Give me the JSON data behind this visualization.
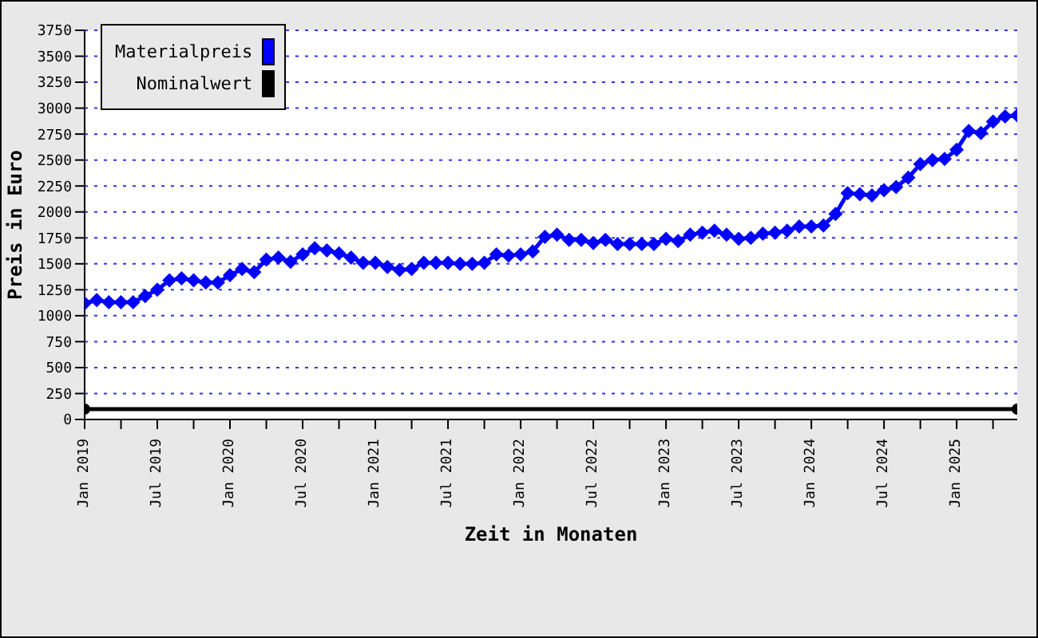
{
  "chart_data": {
    "type": "line",
    "xlabel": "Zeit in Monaten",
    "ylabel": "Preis in Euro",
    "x": [
      "2019-01",
      "2019-02",
      "2019-03",
      "2019-04",
      "2019-05",
      "2019-06",
      "2019-07",
      "2019-08",
      "2019-09",
      "2019-10",
      "2019-11",
      "2019-12",
      "2020-01",
      "2020-02",
      "2020-03",
      "2020-04",
      "2020-05",
      "2020-06",
      "2020-07",
      "2020-08",
      "2020-09",
      "2020-10",
      "2020-11",
      "2020-12",
      "2021-01",
      "2021-02",
      "2021-03",
      "2021-04",
      "2021-05",
      "2021-06",
      "2021-07",
      "2021-08",
      "2021-09",
      "2021-10",
      "2021-11",
      "2021-12",
      "2022-01",
      "2022-02",
      "2022-03",
      "2022-04",
      "2022-05",
      "2022-06",
      "2022-07",
      "2022-08",
      "2022-09",
      "2022-10",
      "2022-11",
      "2022-12",
      "2023-01",
      "2023-02",
      "2023-03",
      "2023-04",
      "2023-05",
      "2023-06",
      "2023-07",
      "2023-08",
      "2023-09",
      "2023-10",
      "2023-11",
      "2023-12",
      "2024-01",
      "2024-02",
      "2024-03",
      "2024-04",
      "2024-05",
      "2024-06",
      "2024-07",
      "2024-08",
      "2024-09",
      "2024-10",
      "2024-11",
      "2024-12",
      "2025-01",
      "2025-02",
      "2025-03",
      "2025-04",
      "2025-05",
      "2025-06"
    ],
    "series": [
      {
        "name": "Materialpreis",
        "color": "#0000ff",
        "marker": "diamond",
        "values": [
          1120,
          1150,
          1130,
          1130,
          1130,
          1190,
          1250,
          1340,
          1360,
          1340,
          1320,
          1320,
          1390,
          1450,
          1420,
          1540,
          1560,
          1520,
          1590,
          1650,
          1630,
          1600,
          1560,
          1510,
          1510,
          1470,
          1440,
          1450,
          1510,
          1510,
          1510,
          1500,
          1500,
          1510,
          1590,
          1580,
          1590,
          1620,
          1760,
          1780,
          1730,
          1730,
          1700,
          1730,
          1690,
          1690,
          1690,
          1690,
          1740,
          1720,
          1780,
          1800,
          1820,
          1780,
          1740,
          1750,
          1790,
          1800,
          1820,
          1860,
          1860,
          1870,
          1980,
          2180,
          2170,
          2160,
          2210,
          2240,
          2330,
          2460,
          2500,
          2510,
          2600,
          2780,
          2760,
          2870,
          2920,
          2930
        ]
      },
      {
        "name": "Nominalwert",
        "color": "#000000",
        "marker": "circle",
        "x": [
          "2019-01",
          "2025-06"
        ],
        "values": [
          100,
          100
        ]
      }
    ],
    "xlim": [
      "2019-01",
      "2025-06"
    ],
    "xticks": [
      {
        "value": "2019-01",
        "label": "Jan 2019"
      },
      {
        "value": "2019-04",
        "label": null
      },
      {
        "value": "2019-07",
        "label": "Jul 2019"
      },
      {
        "value": "2019-10",
        "label": null
      },
      {
        "value": "2020-01",
        "label": "Jan 2020"
      },
      {
        "value": "2020-04",
        "label": null
      },
      {
        "value": "2020-07",
        "label": "Jul 2020"
      },
      {
        "value": "2020-10",
        "label": null
      },
      {
        "value": "2021-01",
        "label": "Jan 2021"
      },
      {
        "value": "2021-04",
        "label": null
      },
      {
        "value": "2021-07",
        "label": "Jul 2021"
      },
      {
        "value": "2021-10",
        "label": null
      },
      {
        "value": "2022-01",
        "label": "Jan 2022"
      },
      {
        "value": "2022-04",
        "label": null
      },
      {
        "value": "2022-07",
        "label": "Jul 2022"
      },
      {
        "value": "2022-10",
        "label": null
      },
      {
        "value": "2023-01",
        "label": "Jan 2023"
      },
      {
        "value": "2023-04",
        "label": null
      },
      {
        "value": "2023-07",
        "label": "Jul 2023"
      },
      {
        "value": "2023-10",
        "label": null
      },
      {
        "value": "2024-01",
        "label": "Jan 2024"
      },
      {
        "value": "2024-04",
        "label": null
      },
      {
        "value": "2024-07",
        "label": "Jul 2024"
      },
      {
        "value": "2024-10",
        "label": null
      },
      {
        "value": "2025-01",
        "label": "Jan 2025"
      },
      {
        "value": "2025-04",
        "label": null
      }
    ],
    "ylim": [
      0,
      3750
    ],
    "yticks": [
      0,
      250,
      500,
      750,
      1000,
      1250,
      1500,
      1750,
      2000,
      2250,
      2500,
      2750,
      3000,
      3250,
      3500,
      3750
    ],
    "grid": "y",
    "legend": "top left",
    "line_style": "solid"
  }
}
